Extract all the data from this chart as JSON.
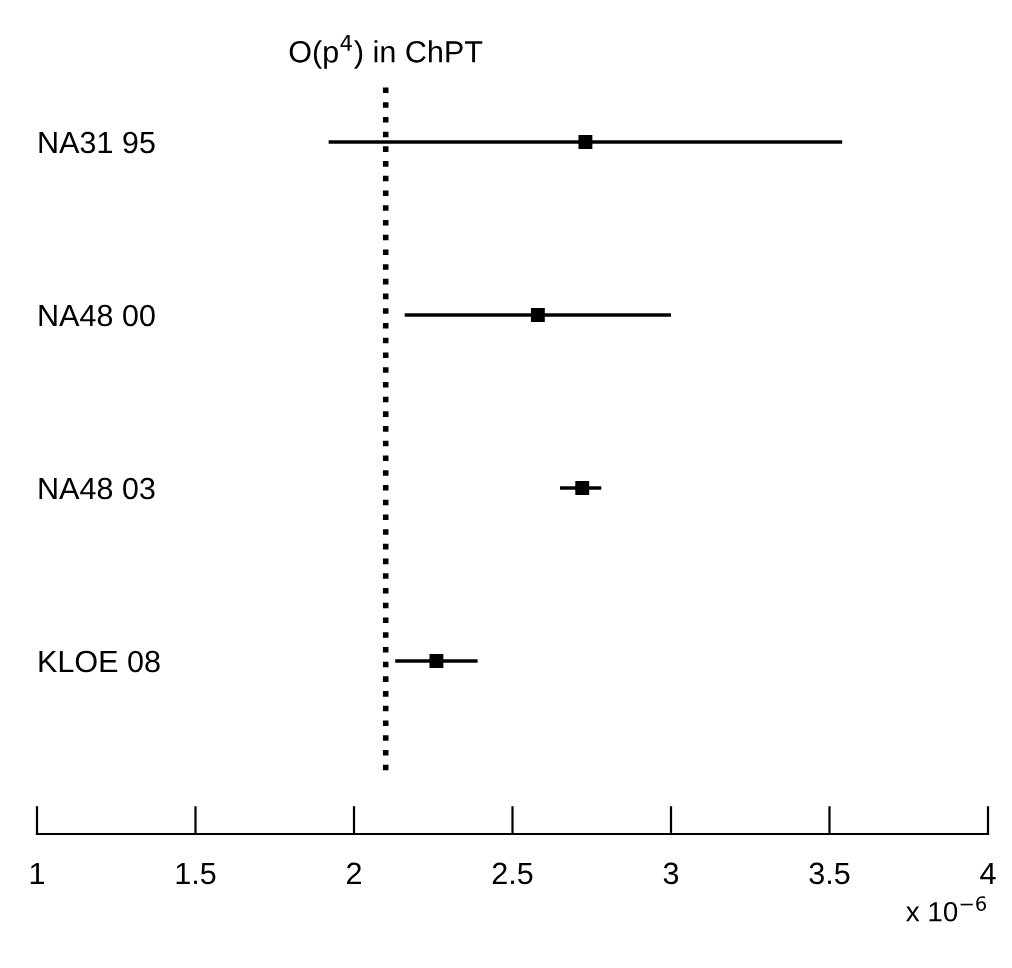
{
  "chart_data": {
    "type": "scatter",
    "orientation": "horizontal",
    "marker": "square",
    "categories": [
      "NA31 95",
      "NA48 00",
      "NA48 03",
      "KLOE 08"
    ],
    "series": [
      {
        "color": "#000000",
        "values": [
          2.73,
          2.58,
          2.72,
          2.26
        ],
        "errors": [
          [
            1.92,
            3.54
          ],
          [
            2.16,
            3.0
          ],
          [
            2.65,
            2.78
          ],
          [
            2.13,
            2.39
          ]
        ]
      }
    ],
    "xlim": [
      1,
      4
    ],
    "xticks": [
      1,
      1.5,
      2,
      2.5,
      3,
      3.5,
      4
    ],
    "xlabel": "x 10$^{−6}$",
    "ref_lines": [
      {
        "axis": "x",
        "value": 2.1,
        "label": "O(p$^{4}$) in ChPT",
        "line_style": "dotted",
        "color": "#000000"
      }
    ],
    "grid": false,
    "legend": false
  }
}
